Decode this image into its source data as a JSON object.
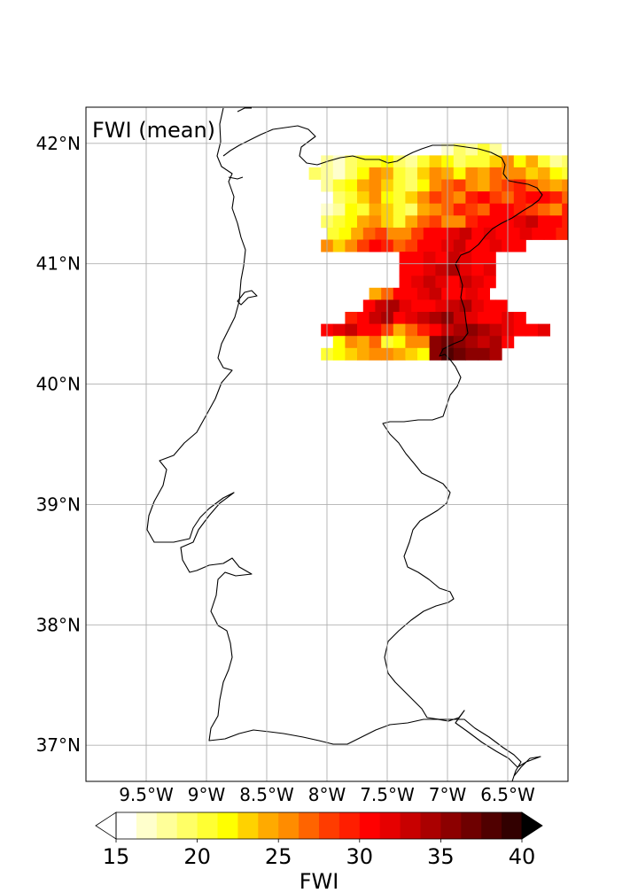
{
  "map": {
    "title": "FWI (mean)",
    "lon_range": [
      -10.0,
      -6.0
    ],
    "lat_range": [
      36.7,
      42.3
    ],
    "lon_ticks": [
      {
        "value": -9.5,
        "label": "9.5°W"
      },
      {
        "value": -9.0,
        "label": "9°W"
      },
      {
        "value": -8.5,
        "label": "8.5°W"
      },
      {
        "value": -8.0,
        "label": "8°W"
      },
      {
        "value": -7.5,
        "label": "7.5°W"
      },
      {
        "value": -7.0,
        "label": "7°W"
      },
      {
        "value": -6.5,
        "label": "6.5°W"
      }
    ],
    "lat_ticks": [
      {
        "value": 37,
        "label": "37°N"
      },
      {
        "value": 38,
        "label": "38°N"
      },
      {
        "value": 39,
        "label": "39°N"
      },
      {
        "value": 40,
        "label": "40°N"
      },
      {
        "value": 41,
        "label": "41°N"
      },
      {
        "value": 42,
        "label": "42°N"
      }
    ],
    "grid": true,
    "region": "Portugal",
    "coastline_color": "#000000"
  },
  "colorbar": {
    "label": "FWI",
    "min": 15,
    "max": 40,
    "step": 1.25,
    "extend": "both",
    "ticks": [
      {
        "value": 15,
        "label": "15"
      },
      {
        "value": 20,
        "label": "20"
      },
      {
        "value": 25,
        "label": "25"
      },
      {
        "value": 30,
        "label": "30"
      },
      {
        "value": 35,
        "label": "35"
      },
      {
        "value": 40,
        "label": "40"
      }
    ],
    "colors": [
      "#ffffff",
      "#ffffcc",
      "#ffff99",
      "#ffff66",
      "#ffff33",
      "#ffff00",
      "#ffd200",
      "#ffaa00",
      "#ff8c00",
      "#ff6400",
      "#ff3c00",
      "#ff1e00",
      "#ff0000",
      "#e60000",
      "#c80000",
      "#aa0000",
      "#8c0000",
      "#6e0000",
      "#500000",
      "#320000",
      "#100000"
    ],
    "under_color": "#ffffff",
    "over_color": "#000000"
  },
  "chart_data": {
    "type": "heatmap",
    "title": "FWI (mean)",
    "variable": "FWI",
    "units_label": "FWI",
    "cell_size_deg": 0.1,
    "rows": [
      {
        "lat": 41.95,
        "lon_start": -7.1,
        "values": [
          16,
          17,
          19,
          18,
          20,
          18,
          16
        ]
      },
      {
        "lat": 41.85,
        "lon_start": -8.0,
        "values": [
          18,
          17,
          19,
          21,
          20,
          22,
          19,
          18,
          21,
          23,
          22,
          19,
          21,
          20,
          23,
          25,
          22,
          24,
          20,
          18,
          19,
          21,
          20,
          17
        ]
      },
      {
        "lat": 41.75,
        "lon_start": -8.1,
        "values": [
          19,
          18,
          17,
          19,
          22,
          25,
          24,
          21,
          19,
          23,
          26,
          24,
          22,
          25,
          24,
          27,
          26,
          25,
          23,
          24,
          22,
          21,
          20,
          19,
          18,
          17,
          18
        ]
      },
      {
        "lat": 41.65,
        "lon_start": -8.0,
        "values": [
          18,
          20,
          22,
          24,
          26,
          23,
          21,
          19,
          22,
          25,
          27,
          28,
          26,
          24,
          27,
          28,
          29,
          27,
          25,
          24,
          26,
          28,
          27,
          25,
          26,
          30,
          31,
          32,
          30
        ]
      },
      {
        "lat": 41.55,
        "lon_start": -7.9,
        "values": [
          19,
          21,
          23,
          25,
          22,
          20,
          23,
          26,
          28,
          27,
          25,
          29,
          30,
          28,
          27,
          29,
          31,
          30,
          29,
          27,
          28,
          30,
          32,
          31,
          30,
          31,
          32,
          31,
          30
        ]
      },
      {
        "lat": 41.45,
        "lon_start": -8.0,
        "values": [
          17,
          18,
          22,
          21,
          24,
          23,
          20,
          19,
          24,
          26,
          27,
          29,
          28,
          27,
          30,
          31,
          29,
          28,
          27,
          26,
          29,
          28,
          31,
          30,
          32,
          31,
          30,
          31,
          32,
          31
        ]
      },
      {
        "lat": 41.35,
        "lon_start": -8.0,
        "values": [
          19,
          20,
          22,
          24,
          25,
          23,
          21,
          24,
          27,
          28,
          26,
          25,
          29,
          30,
          31,
          30,
          32,
          33,
          31,
          30,
          29,
          31,
          30,
          28,
          29,
          30
        ]
      },
      {
        "lat": 41.25,
        "lon_start": -7.95,
        "values": [
          20,
          22,
          24,
          27,
          28,
          26,
          25,
          28,
          30,
          31,
          32,
          33,
          31,
          32,
          30,
          31,
          32,
          30,
          31,
          29
        ]
      },
      {
        "lat": 41.15,
        "lon_start": -8.0,
        "values": [
          25,
          23,
          26,
          28,
          30,
          29,
          27,
          28,
          30,
          31,
          32,
          33,
          31,
          30,
          32,
          31,
          30
        ]
      },
      {
        "lat": 41.05,
        "lon_start": -7.35,
        "values": [
          30,
          31,
          32,
          31,
          33,
          32,
          31,
          30
        ]
      },
      {
        "lat": 40.95,
        "lon_start": -7.35,
        "values": [
          31,
          30,
          32,
          33,
          34,
          32,
          31,
          32
        ]
      },
      {
        "lat": 40.85,
        "lon_start": -7.35,
        "values": [
          31,
          32,
          33,
          32,
          31,
          33,
          32,
          31
        ]
      },
      {
        "lat": 40.75,
        "lon_start": -7.6,
        "values": [
          24,
          27,
          30,
          31,
          32,
          33,
          31,
          30,
          32,
          31
        ]
      },
      {
        "lat": 40.65,
        "lon_start": -7.65,
        "values": [
          31,
          33,
          34,
          32,
          31,
          30,
          32,
          33,
          34,
          32,
          31,
          30
        ]
      },
      {
        "lat": 40.55,
        "lon_start": -7.8,
        "values": [
          29,
          30,
          33,
          34,
          31,
          32,
          33,
          34,
          35,
          33,
          32,
          31,
          30,
          32,
          31
        ]
      },
      {
        "lat": 40.45,
        "lon_start": -8.0,
        "values": [
          31,
          32,
          33,
          31,
          30,
          28,
          24,
          27,
          29,
          30,
          33,
          34,
          35,
          34,
          33,
          32,
          31,
          30,
          32
        ]
      },
      {
        "lat": 40.35,
        "lon_start": -7.9,
        "values": [
          22,
          25,
          24,
          27,
          20,
          22,
          25,
          26,
          35,
          37,
          36,
          34,
          33,
          34,
          31
        ]
      },
      {
        "lat": 40.25,
        "lon_start": -8.0,
        "values": [
          21,
          22,
          23,
          24,
          25,
          26,
          24,
          23,
          22,
          36,
          38,
          37,
          36,
          35,
          34
        ]
      }
    ]
  }
}
